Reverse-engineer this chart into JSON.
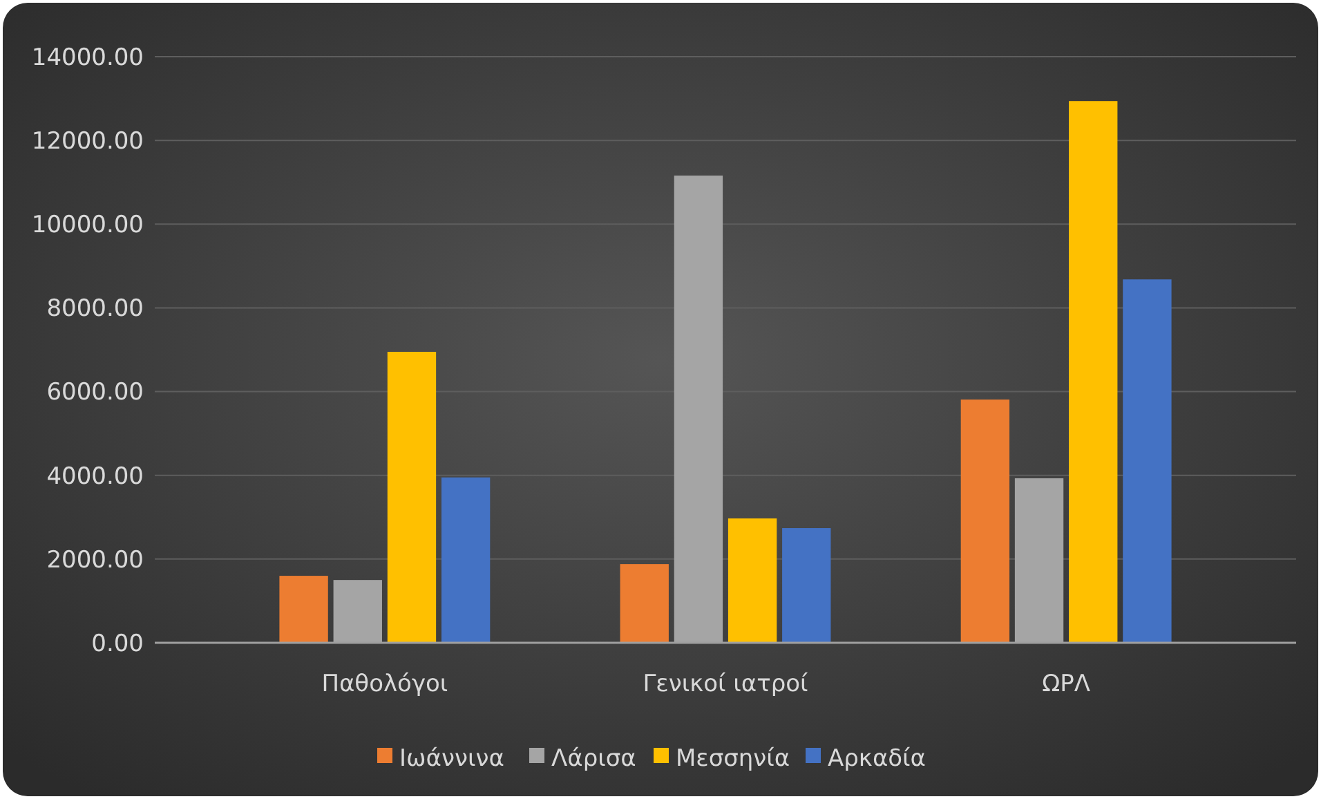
{
  "chart_data": {
    "type": "bar",
    "categories": [
      "Παθολόγοι",
      "Γενικοί ιατροί",
      "ΩΡΛ"
    ],
    "series": [
      {
        "name": "Ιωάννινα",
        "color": "#ed7d31",
        "values": [
          1600,
          1880,
          5810
        ]
      },
      {
        "name": "Λάρισα",
        "color": "#a5a5a5",
        "values": [
          1500,
          11160,
          3930
        ]
      },
      {
        "name": "Μεσσηνία",
        "color": "#ffc000",
        "values": [
          6950,
          2970,
          12940
        ]
      },
      {
        "name": "Αρκαδία",
        "color": "#4472c4",
        "values": [
          3950,
          2740,
          8680
        ]
      }
    ],
    "ylim": [
      0,
      14000
    ],
    "yticks": [
      {
        "value": 0,
        "label": "0.00"
      },
      {
        "value": 2000,
        "label": "2000.00"
      },
      {
        "value": 4000,
        "label": "4000.00"
      },
      {
        "value": 6000,
        "label": "6000.00"
      },
      {
        "value": 8000,
        "label": "8000.00"
      },
      {
        "value": 10000,
        "label": "10000.00"
      },
      {
        "value": 12000,
        "label": "12000.00"
      },
      {
        "value": 14000,
        "label": "14000.00"
      }
    ],
    "grid": "y",
    "legend": "bottom"
  }
}
